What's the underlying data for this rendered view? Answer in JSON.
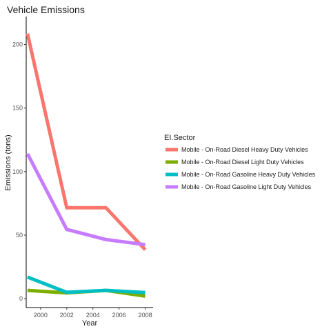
{
  "chart_data": {
    "type": "line",
    "title": "Vehicle Emissions",
    "xlabel": "Year",
    "ylabel": "Emissions (tons)",
    "x": [
      1999,
      2002,
      2005,
      2008
    ],
    "xlim": [
      1998.9,
      2008.6
    ],
    "ylim": [
      -7,
      222
    ],
    "xticks": [
      2000,
      2002,
      2004,
      2006,
      2008
    ],
    "yticks": [
      0,
      50,
      100,
      150,
      200
    ],
    "grid": false,
    "legend": {
      "title": "EI.Sector",
      "placement": "right"
    },
    "series": [
      {
        "name": "Mobile - On-Road Diesel Heavy Duty Vehicles",
        "color": "#F8766D",
        "values": [
          208.5,
          71.5,
          71.5,
          38.5
        ]
      },
      {
        "name": "Mobile - On-Road Diesel Light Duty Vehicles",
        "color": "#7CAE00",
        "values": [
          6.5,
          4.5,
          6.5,
          2.0
        ]
      },
      {
        "name": "Mobile - On-Road Gasoline Heavy Duty Vehicles",
        "color": "#00BFC4",
        "values": [
          17.0,
          5.0,
          6.5,
          4.8
        ]
      },
      {
        "name": "Mobile - On-Road Gasoline Light Duty Vehicles",
        "color": "#C77CFF",
        "values": [
          114.0,
          54.5,
          46.5,
          42.5
        ]
      }
    ]
  }
}
